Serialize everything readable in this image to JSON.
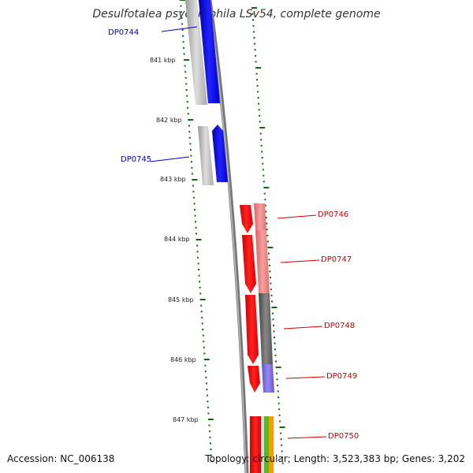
{
  "title": "Desulfotalea psychrophila LSv54, complete genome",
  "footer": {
    "accession": "Accession: NC_006138",
    "topology": "Topology: circular; Length: 3,523,383 bp; Genes: 3,202"
  },
  "colors": {
    "forward_strand": "#0000ee",
    "forward_strand_light": "#bbbbbb",
    "reverse_strand": "#ee0000",
    "reverse_strand_light": "#f08080",
    "backbone": "#888888",
    "tick": "#116611",
    "label_blue": "#0000cc",
    "label_red": "#cc0000"
  },
  "kbp_labels": [
    "841 kbp",
    "842 kbp",
    "843 kbp",
    "844 kbp",
    "845 kbp",
    "846 kbp",
    "847 kbp"
  ],
  "genes": [
    {
      "name": "DP0744",
      "strand": "forward",
      "color": "label_blue"
    },
    {
      "name": "DP0745",
      "strand": "forward",
      "color": "label_blue"
    },
    {
      "name": "DP0746",
      "strand": "reverse",
      "color": "label_red"
    },
    {
      "name": "DP0747",
      "strand": "reverse",
      "color": "label_red"
    },
    {
      "name": "DP0748",
      "strand": "reverse",
      "color": "label_red"
    },
    {
      "name": "DP0749",
      "strand": "reverse",
      "color": "label_red"
    },
    {
      "name": "DP0750",
      "strand": "reverse",
      "color": "label_red"
    }
  ]
}
